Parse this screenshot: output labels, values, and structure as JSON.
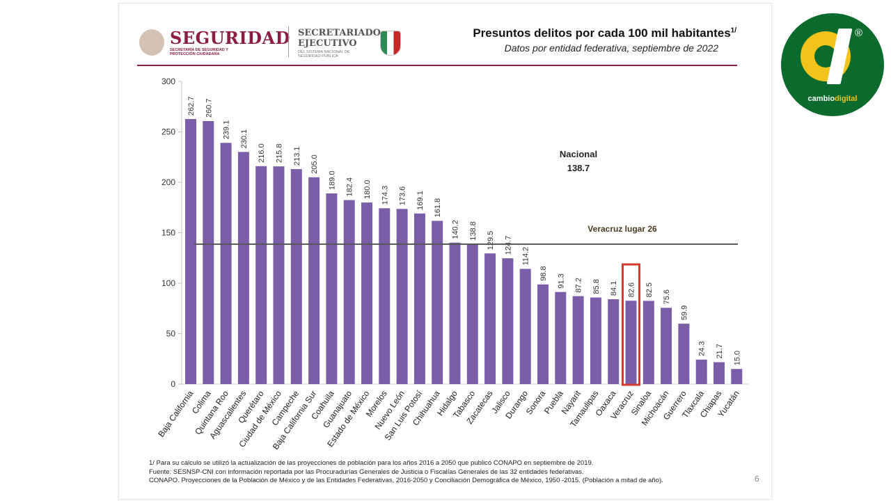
{
  "header": {
    "seguridad": "SEGURIDAD",
    "seguridad_sub": "SECRETARÍA DE SEGURIDAD Y PROTECCIÓN CIUDADANA",
    "secretariado": "SECRETARIADO",
    "ejecutivo": "EJECUTIVO",
    "secretariado_sub": "DEL SISTEMA NACIONAL DE SEGURIDAD PÚBLICA",
    "title": "Presuntos delitos por cada 100 mil habitantes",
    "title_sup": "1/",
    "subtitle": "Datos por entidad federativa, septiembre de 2022"
  },
  "chart_data": {
    "type": "bar",
    "title": "Presuntos delitos por cada 100 mil habitantes",
    "subtitle": "Datos por entidad federativa, septiembre de 2022",
    "categories": [
      "Baja California",
      "Colima",
      "Quintana Roo",
      "Aguascalientes",
      "Querétaro",
      "Ciudad de México",
      "Campeche",
      "Baja California Sur",
      "Coahuila",
      "Guanajuato",
      "Estado de México",
      "Morelos",
      "Nuevo León",
      "San Luis Potosí",
      "Chihuahua",
      "Hidalgo",
      "Tabasco",
      "Zacatecas",
      "Jalisco",
      "Durango",
      "Sonora",
      "Puebla",
      "Nayarit",
      "Tamaulipas",
      "Oaxaca",
      "Veracruz",
      "Sinaloa",
      "Michoacán",
      "Guerrero",
      "Tlaxcala",
      "Chiapas",
      "Yucatán"
    ],
    "values": [
      262.7,
      260.7,
      239.1,
      230.1,
      216.0,
      215.8,
      213.1,
      205.0,
      189.0,
      182.4,
      180.0,
      174.3,
      173.6,
      169.1,
      161.8,
      140.2,
      138.8,
      129.5,
      124.7,
      114.2,
      98.8,
      91.3,
      87.2,
      85.8,
      84.1,
      82.6,
      82.5,
      75.6,
      59.9,
      24.3,
      21.7,
      15.0
    ],
    "value_labels": [
      "262.7",
      "260.7",
      "239.1",
      "230.1",
      "216.0",
      "215.8",
      "213.1",
      "205.0",
      "189.0",
      "182.4",
      "180.0",
      "174.3",
      "173.6",
      "169.1",
      "161.8",
      "140.2",
      "138.8",
      "129.5",
      "124.7",
      "114.2",
      "98.8",
      "91.3",
      "87.2",
      "85.8",
      "84.1",
      "82.6",
      "82.5",
      "75.6",
      "59.9",
      "24.3",
      "21.7",
      "15.0"
    ],
    "ylim": [
      0,
      300
    ],
    "yticks": [
      "0",
      "50",
      "100",
      "150",
      "200",
      "250",
      "300"
    ],
    "ytick_values": [
      0,
      50,
      100,
      150,
      200,
      250,
      300
    ],
    "grid": false,
    "bar_color": "#7b5ea7",
    "reference_line": {
      "value": 138.7,
      "label_line1": "Nacional",
      "label_line2": "138.7",
      "color": "#555555"
    },
    "highlight": {
      "category": "Veracruz",
      "label": "Veracruz lugar  26",
      "color": "#d63a2f"
    }
  },
  "footnotes": [
    "1/ Para su cálculo se utilizó la actualización de las proyecciones de población para los años 2016 a 2050 que publicó CONAPO en septiembre de 2019.",
    "Fuente: SESNSP-CNI con información reportada por las Procuradurías Generales de Justicia o Fiscalías Generales de las 32 entidades federativas.",
    "CONAPO. Proyecciones de la Población de México y de las Entidades Federativas, 2016-2050 y Conciliación Demográfica de México, 1950 -2015. (Población a mitad de año)."
  ],
  "page_number": "6",
  "brand": {
    "prefix": "cambio",
    "suffix": "digital",
    "registered": "®",
    "green": "#0a6b2d",
    "yellow": "#f2c31b"
  }
}
